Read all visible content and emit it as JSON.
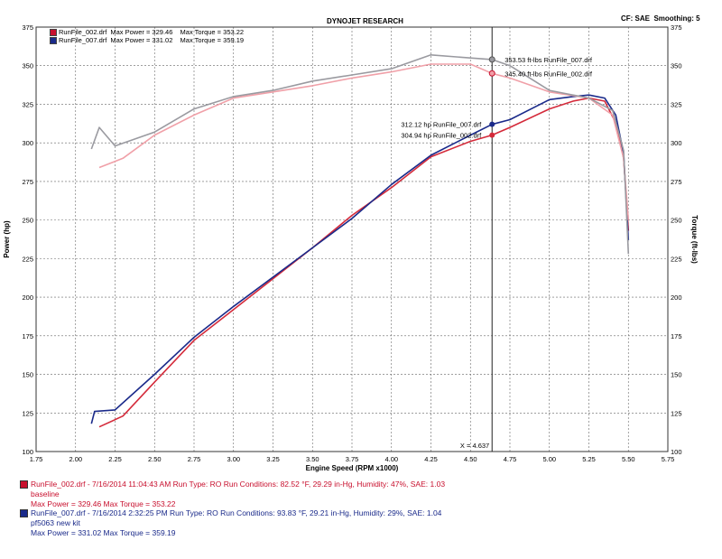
{
  "header": {
    "title": "DYNOJET RESEARCH",
    "cf_label": "CF: SAE",
    "smoothing_label": "Smoothing: 5"
  },
  "legend": [
    {
      "name": "RunFile_002.drf",
      "max_power_label": "Max Power = 329.46",
      "max_torque_label": "Max Torque = 353.22",
      "color": "#c8102e"
    },
    {
      "name": "RunFile_007.drf",
      "max_power_label": "Max Power = 331.02",
      "max_torque_label": "Max Torque = 359.19",
      "color": "#1a2a8a"
    }
  ],
  "annotations": {
    "torque_007": "353.53 ft-lbs RunFile_007.drf",
    "torque_002": "345.40 ft-lbs RunFile_002.drf",
    "power_007": "312.12 hp RunFile_007.drf",
    "power_002": "304.94 hp RunFile_002.drf",
    "cursor": "X = 4.637"
  },
  "run_info": [
    {
      "line1": "RunFile_002.drf - 7/16/2014 11:04:43 AM  Run Type: RO  Run Conditions: 82.52 °F, 29.29 in-Hg,  Humidity:  47%, SAE: 1.03",
      "line2": "baseline",
      "line3": "Max Power = 329.46  Max Torque = 353.22",
      "color": "#c8102e"
    },
    {
      "line1": "RunFile_007.drf - 7/16/2014 2:32:25 PM  Run Type: RO  Run Conditions: 93.83 °F, 29.21 in-Hg,  Humidity:  29%, SAE: 1.04",
      "line2": "pf5063 new kit",
      "line3": "Max Power = 331.02  Max Torque = 359.19",
      "color": "#1a2a8a"
    }
  ],
  "chart_data": {
    "type": "line",
    "xlabel": "Engine Speed (RPM x1000)",
    "ylabel": "Power (hp)",
    "y2label": "Torque (ft-lbs)",
    "xlim": [
      1.75,
      5.75
    ],
    "ylim": [
      100,
      375
    ],
    "y2lim": [
      100,
      375
    ],
    "grid": true,
    "legend_position": "top-left",
    "xticks": [
      "1.75",
      "2.00",
      "2.25",
      "2.50",
      "2.75",
      "3.00",
      "3.25",
      "3.50",
      "3.75",
      "4.00",
      "4.25",
      "4.50",
      "4.75",
      "5.00",
      "5.25",
      "5.50",
      "5.75"
    ],
    "yticks": [
      "100",
      "125",
      "150",
      "175",
      "200",
      "225",
      "250",
      "275",
      "300",
      "325",
      "350",
      "375"
    ],
    "cursor_x": 4.637,
    "series": [
      {
        "name": "RunFile_002.drf",
        "kind": "power",
        "axis": "left",
        "color": "#d42a3a",
        "x": [
          2.15,
          2.3,
          2.5,
          2.75,
          3.0,
          3.25,
          3.5,
          3.75,
          4.0,
          4.25,
          4.5,
          4.637,
          4.75,
          5.0,
          5.15,
          5.25,
          5.35,
          5.42,
          5.47,
          5.5
        ],
        "y": [
          116,
          123,
          145,
          172,
          192,
          212,
          232,
          253,
          271,
          291,
          301,
          305,
          310,
          322,
          327,
          329,
          327,
          313,
          290,
          243
        ]
      },
      {
        "name": "RunFile_007.drf",
        "kind": "power",
        "axis": "left",
        "color": "#1a2a8a",
        "x": [
          2.1,
          2.12,
          2.25,
          2.5,
          2.75,
          3.0,
          3.25,
          3.5,
          3.75,
          4.0,
          4.25,
          4.5,
          4.637,
          4.75,
          5.0,
          5.15,
          5.25,
          5.35,
          5.42,
          5.47,
          5.5
        ],
        "y": [
          118,
          126,
          127,
          150,
          174,
          194,
          213,
          232,
          251,
          273,
          292,
          305,
          312,
          315,
          328,
          330,
          331,
          329,
          318,
          293,
          237
        ]
      },
      {
        "name": "RunFile_002.drf",
        "kind": "torque",
        "axis": "right",
        "color": "#f0a0a8",
        "x": [
          2.15,
          2.3,
          2.5,
          2.75,
          3.0,
          3.25,
          3.5,
          3.75,
          4.0,
          4.25,
          4.5,
          4.637,
          4.75,
          5.0,
          5.25,
          5.4,
          5.47,
          5.5
        ],
        "y": [
          284,
          290,
          305,
          318,
          329,
          333,
          337,
          342,
          346,
          351,
          351,
          345,
          342,
          333,
          329,
          318,
          290,
          250
        ]
      },
      {
        "name": "RunFile_007.drf",
        "kind": "torque",
        "axis": "right",
        "color": "#9a9aa0",
        "x": [
          2.1,
          2.15,
          2.25,
          2.5,
          2.75,
          3.0,
          3.25,
          3.5,
          3.75,
          4.0,
          4.25,
          4.5,
          4.637,
          4.75,
          5.0,
          5.25,
          5.4,
          5.47,
          5.5
        ],
        "y": [
          296,
          310,
          298,
          307,
          322,
          330,
          334,
          340,
          344,
          348,
          357,
          355,
          354,
          350,
          334,
          329,
          321,
          295,
          228
        ]
      }
    ]
  }
}
